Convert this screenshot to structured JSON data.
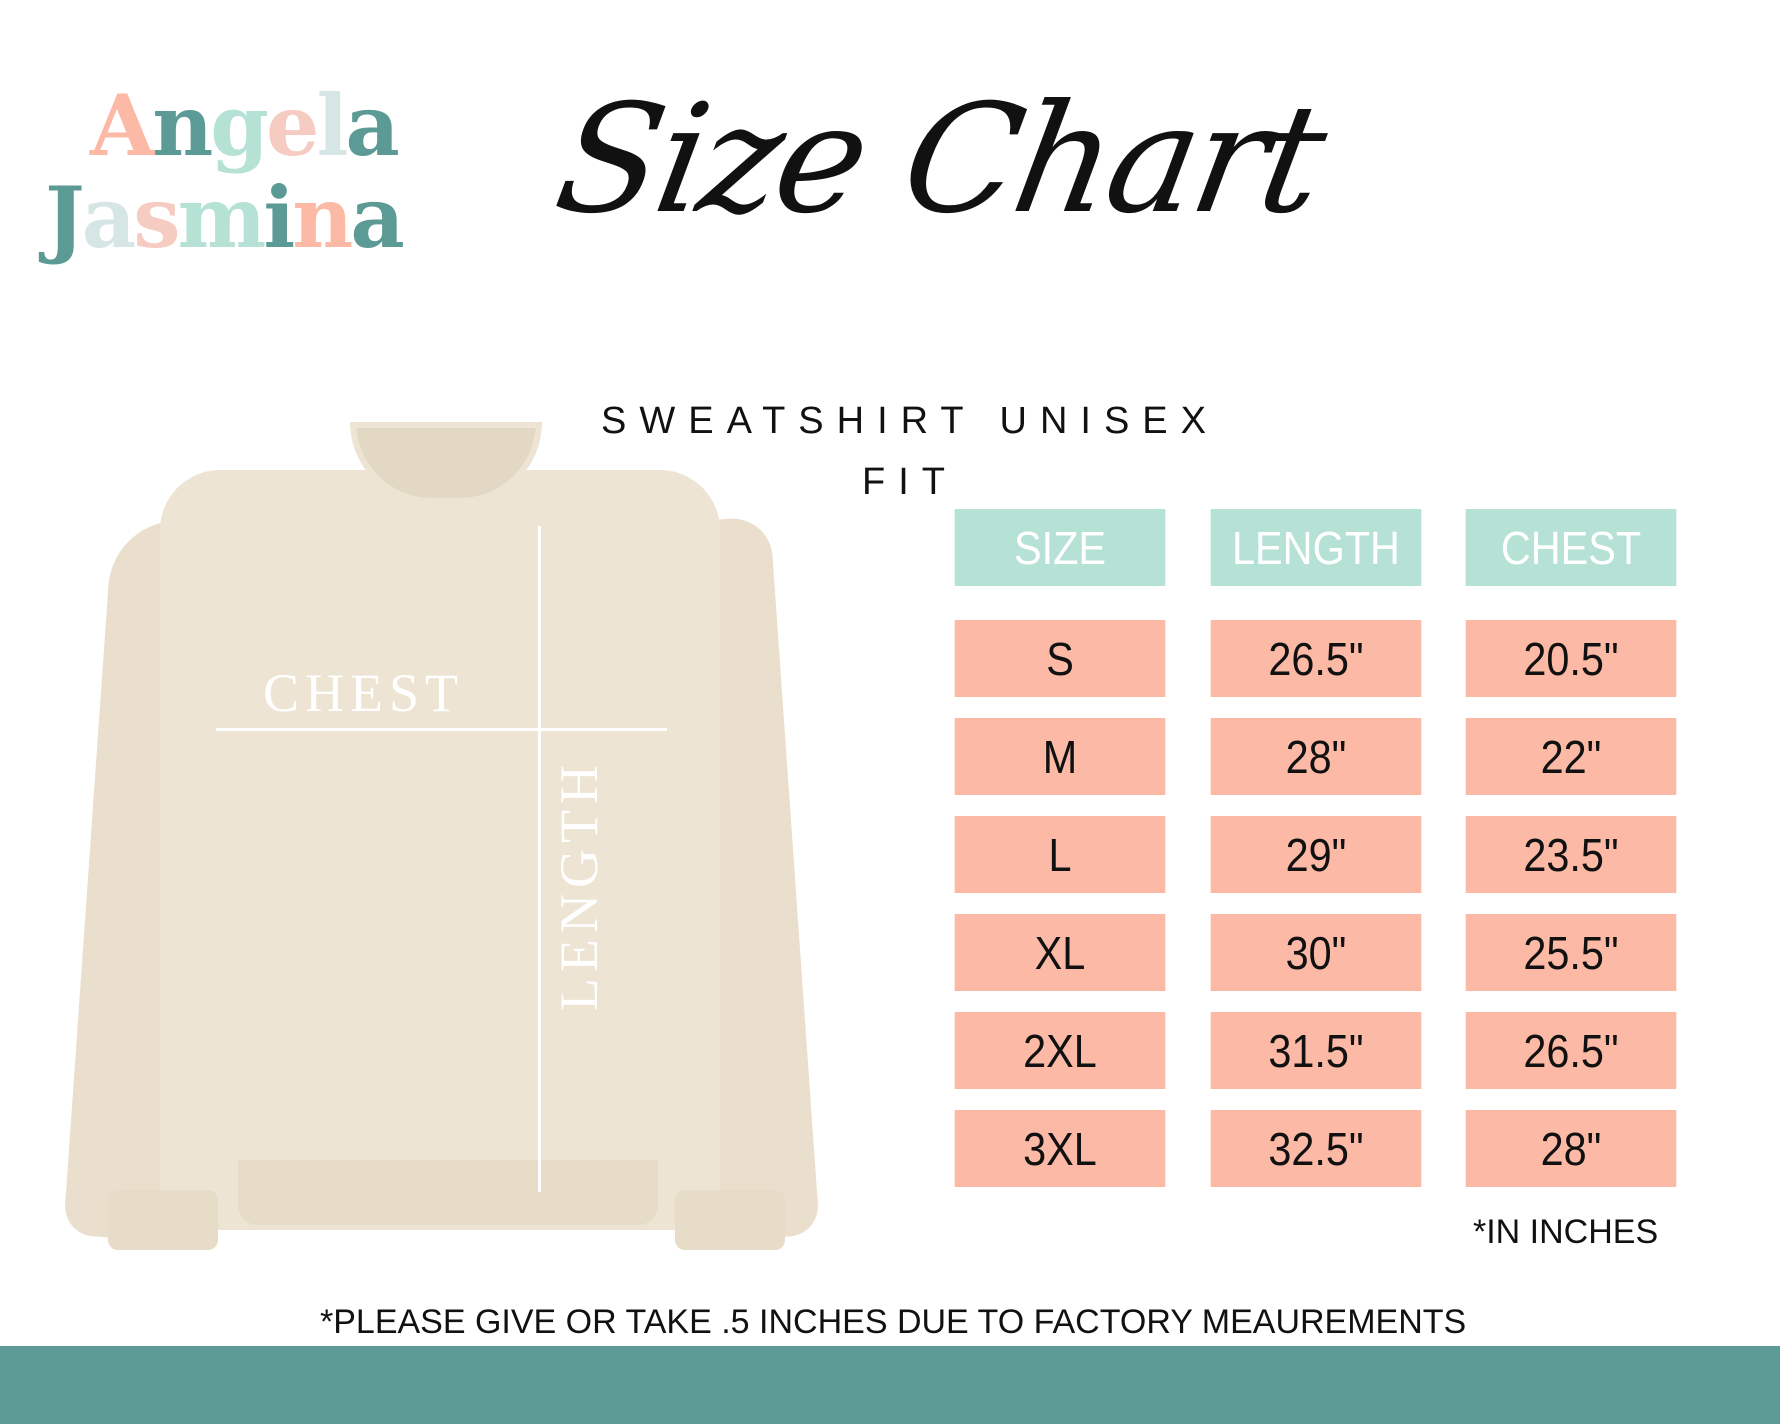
{
  "logo": {
    "line1": "Angela",
    "line2": "Jasmina",
    "line1_letters": [
      "A",
      "n",
      "g",
      "e",
      "l",
      "a"
    ],
    "line1_colors": [
      "#fbb9a6",
      "#5c9a96",
      "#b5e2d5",
      "#f6cbc1",
      "#d6e6e4",
      "#5c9a96"
    ],
    "line2_letters": [
      "J",
      "a",
      "s",
      "m",
      "i",
      "n",
      "a"
    ],
    "line2_colors": [
      "#5c9a96",
      "#d6e6e4",
      "#f6cbc1",
      "#b5e2d5",
      "#5c9a96",
      "#fbb9a6",
      "#5c9a96"
    ]
  },
  "title": "Size Chart",
  "subtitle_line1": "SWEATSHIRT UNISEX",
  "subtitle_line2": "FIT",
  "diagram": {
    "chest_label": "CHEST",
    "length_label": "LENGTH"
  },
  "table": {
    "headers": [
      "SIZE",
      "LENGTH",
      "CHEST"
    ],
    "rows": [
      [
        "S",
        "26.5\"",
        "20.5\""
      ],
      [
        "M",
        "28\"",
        "22\""
      ],
      [
        "L",
        "29\"",
        "23.5\""
      ],
      [
        "XL",
        "30\"",
        "25.5\""
      ],
      [
        "2XL",
        "31.5\"",
        "26.5\""
      ],
      [
        "3XL",
        "32.5\"",
        "28\""
      ]
    ]
  },
  "units_note": "*IN INCHES",
  "footer_note": "*PLEASE GIVE OR TAKE .5 INCHES DUE TO FACTORY MEAUREMENTS",
  "colors": {
    "header": "#b5e2d5",
    "row": "#fbb9a6",
    "footer_bar": "#5c9a96",
    "shirt": "#ede4d3"
  }
}
